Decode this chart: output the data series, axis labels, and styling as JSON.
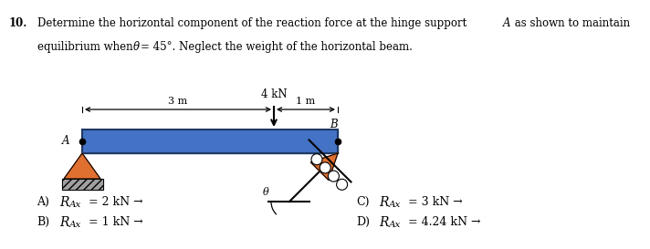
{
  "beam_color": "#4472C4",
  "beam_border_color": "#1F3864",
  "hinge_color": "#E07030",
  "ground_color": "#A0A0A0",
  "text_color": "#000000",
  "bg_color": "#ffffff",
  "force_label": "4 kN",
  "dim_left": "3 m",
  "dim_right": "1 m",
  "angle_label": "θ",
  "point_A": "A",
  "point_B": "B"
}
